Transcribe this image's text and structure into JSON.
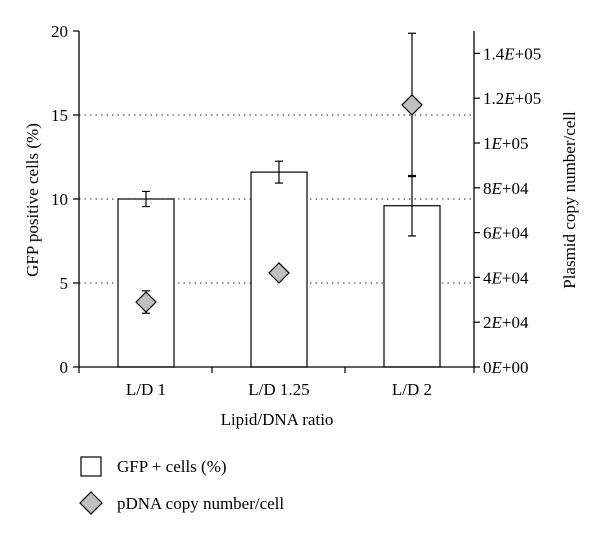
{
  "chart_data": {
    "type": "bar",
    "categories": [
      "L/D 1",
      "L/D 1.25",
      "L/D 2"
    ],
    "xlabel": "Lipid/DNA ratio",
    "ylabel_left": "GFP positive cells (%)",
    "ylabel_right": "Plasmid copy number/cell",
    "ylim_left": [
      0,
      20
    ],
    "ylim_right": [
      0,
      150000
    ],
    "left_ticks": [
      "0",
      "5",
      "10",
      "15",
      "20"
    ],
    "right_ticks": [
      "0E+00",
      "2E+04",
      "4E+04",
      "6E+04",
      "8E+04",
      "1E+05",
      "1.2E+05",
      "1.4E+05"
    ],
    "right_tick_values": [
      0,
      20000,
      40000,
      60000,
      80000,
      100000,
      120000,
      140000
    ],
    "gridlines_at_left": [
      5,
      10,
      15
    ],
    "series": [
      {
        "name": "GFP + cells (%)",
        "kind": "bar",
        "axis": "left",
        "values": [
          10.0,
          11.6,
          9.6
        ],
        "errors": [
          0.45,
          0.65,
          1.8
        ],
        "color": "#ffffff"
      },
      {
        "name": "pDNA copy number/cell",
        "kind": "marker-diamond",
        "axis": "right",
        "values": [
          29000,
          42000,
          117000
        ],
        "errors": [
          5000,
          2500,
          32000
        ],
        "color": "#c0c0c0"
      }
    ],
    "legend_position": "bottom-left"
  }
}
